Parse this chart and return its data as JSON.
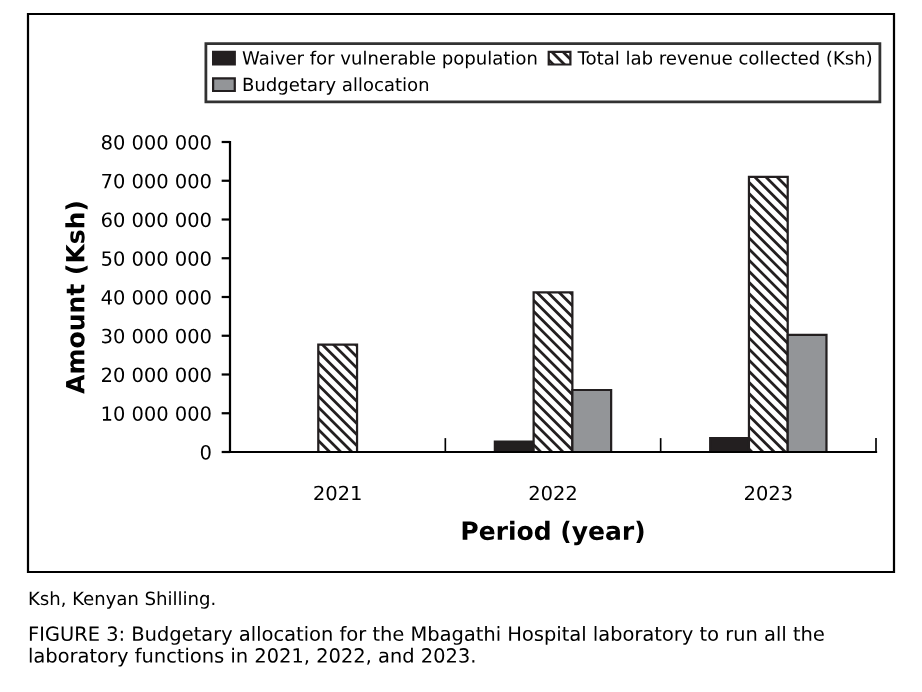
{
  "chart_data": {
    "type": "bar",
    "xlabel": "Period (year)",
    "ylabel": "Amount (Ksh)",
    "categories": [
      "2021",
      "2022",
      "2023"
    ],
    "series": [
      {
        "name": "Waiver for vulnerable population",
        "color": "#231f20",
        "values": [
          null,
          2700000,
          3600000
        ]
      },
      {
        "name": "Total lab revenue collected (Ksh)",
        "color": "#231f20",
        "values": [
          27700000,
          41200000,
          71000000
        ]
      },
      {
        "name": "Budgetary allocation",
        "color": "#939598",
        "values": [
          null,
          16000000,
          30200000
        ]
      }
    ],
    "ylim": [
      0,
      80000000
    ],
    "yticks": [
      {
        "value": 0,
        "label": "0"
      },
      {
        "value": 10000000,
        "label": "10 000 000"
      },
      {
        "value": 20000000,
        "label": "20 000 000"
      },
      {
        "value": 30000000,
        "label": "30 000 000"
      },
      {
        "value": 40000000,
        "label": "40 000 000"
      },
      {
        "value": 50000000,
        "label": "50 000 000"
      },
      {
        "value": 60000000,
        "label": "60 000 000"
      },
      {
        "value": 70000000,
        "label": "70 000 000"
      },
      {
        "value": 80000000,
        "label": "80 000 000"
      }
    ],
    "grid": false,
    "legend": "top right",
    "annotations": [
      "Ksh, Kenyan Shilling.",
      "FIGURE 3: Budgetary allocation for the Mbagathi Hospital laboratory to run all the laboratory functions in 2021, 2022, and 2023."
    ]
  }
}
